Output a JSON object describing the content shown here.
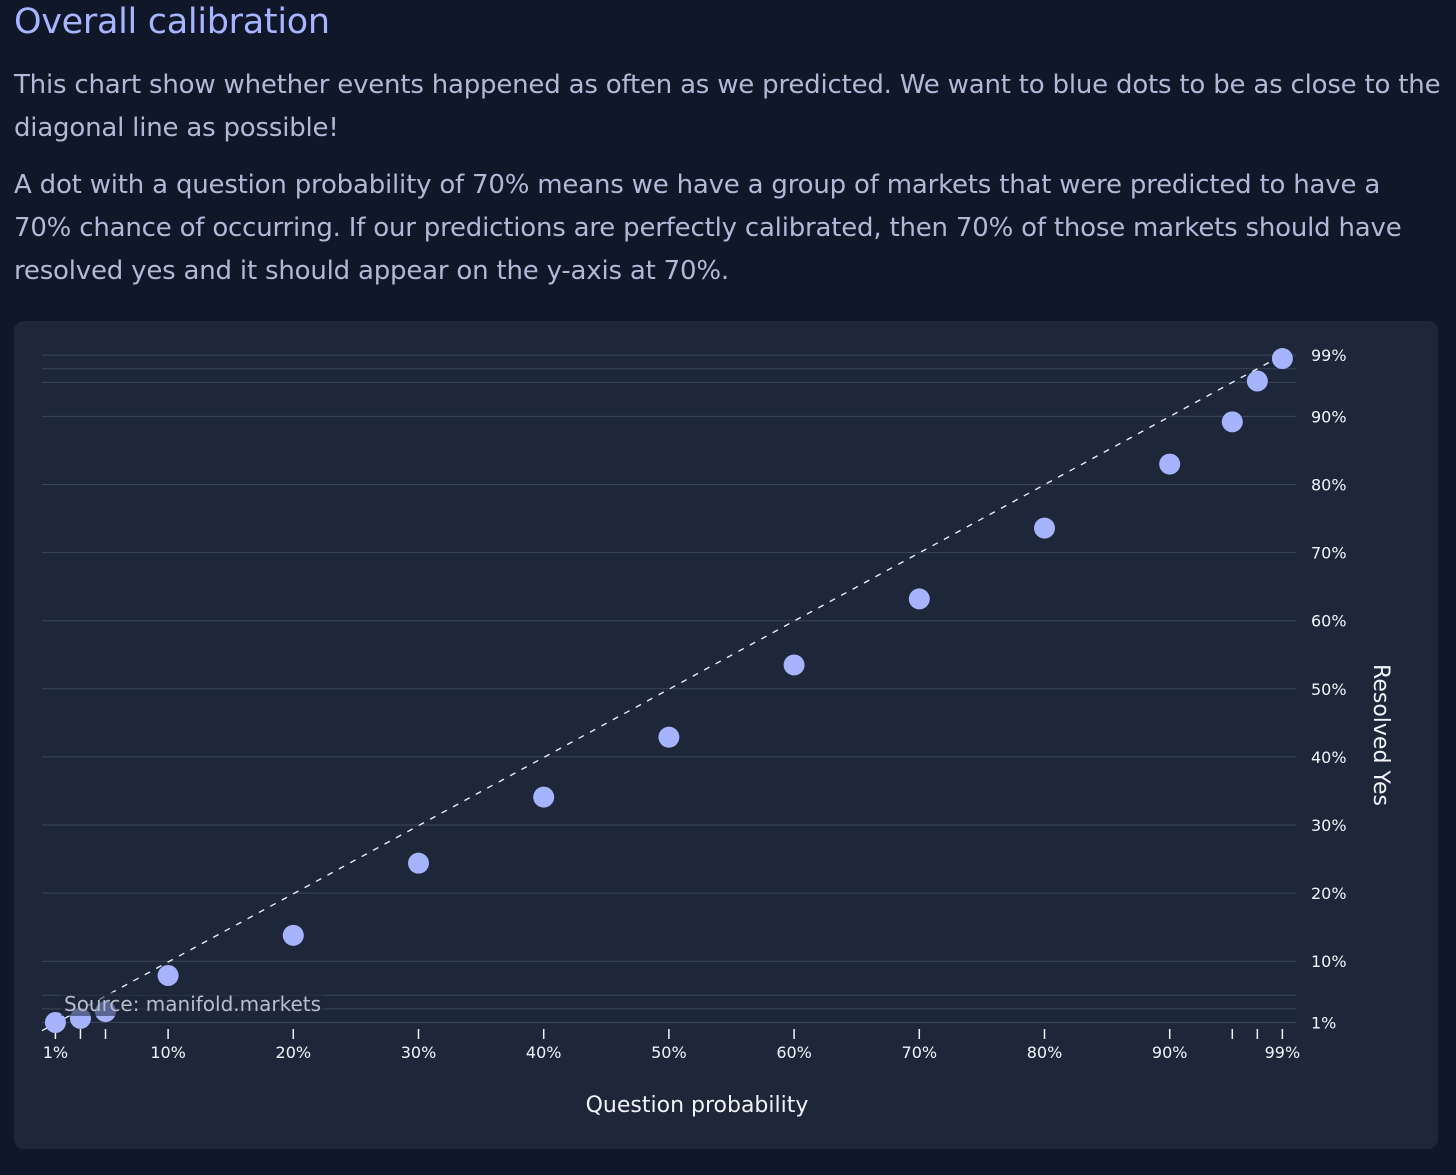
{
  "section": {
    "title": "Overall calibration",
    "paragraphs": [
      "This chart show whether events happened as often as we predicted. We want to blue dots to be as close to the diagonal line as possible!",
      "A dot with a question probability of 70% means we have a group of markets that were predicted to have a 70% chance of occurring. If our predictions are perfectly calibrated, then 70% of those markets should have resolved yes and it should appear on the y-axis at 70%."
    ]
  },
  "colors": {
    "background": "#0f1729",
    "card": "#1d2739",
    "dot": "#a5b4fc",
    "gridline": "#3b4759",
    "heading": "#a7b4ff",
    "text": "#b2b8d6"
  },
  "chart_data": {
    "type": "scatter",
    "title": "",
    "xlabel": "Question probability",
    "ylabel": "Resolved Yes",
    "source": "Source: manifold.markets",
    "xlim": [
      0,
      100
    ],
    "ylim": [
      1,
      99
    ],
    "x_ticks": [
      "1%",
      "10%",
      "20%",
      "30%",
      "40%",
      "50%",
      "60%",
      "70%",
      "80%",
      "90%",
      "99%"
    ],
    "x_minor_ticks": [
      3,
      5,
      95,
      97
    ],
    "y_ticks": [
      "1%",
      "10%",
      "20%",
      "30%",
      "40%",
      "50%",
      "60%",
      "70%",
      "80%",
      "90%",
      "99%"
    ],
    "y_extra_gridlines": [
      3,
      5,
      95,
      97
    ],
    "y_axis_position": "right",
    "grid": true,
    "reference_line": "diagonal y = x (dashed)",
    "series": [
      {
        "points": [
          {
            "x": 1,
            "y": 1.0
          },
          {
            "x": 3,
            "y": 1.6
          },
          {
            "x": 5,
            "y": 2.6
          },
          {
            "x": 10,
            "y": 7.9
          },
          {
            "x": 20,
            "y": 13.8
          },
          {
            "x": 30,
            "y": 24.4
          },
          {
            "x": 40,
            "y": 34.1
          },
          {
            "x": 50,
            "y": 42.9
          },
          {
            "x": 60,
            "y": 53.5
          },
          {
            "x": 70,
            "y": 63.2
          },
          {
            "x": 80,
            "y": 73.6
          },
          {
            "x": 90,
            "y": 83.0
          },
          {
            "x": 95,
            "y": 89.2
          },
          {
            "x": 97,
            "y": 95.2
          },
          {
            "x": 99,
            "y": 98.5
          }
        ]
      }
    ]
  }
}
